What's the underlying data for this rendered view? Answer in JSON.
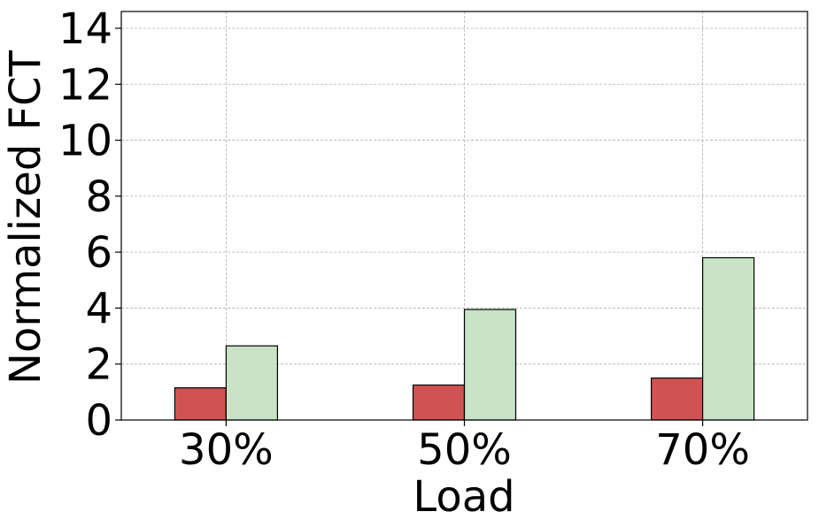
{
  "chart_data": {
    "type": "bar",
    "title": "",
    "xlabel": "Load",
    "ylabel": "Normalized FCT",
    "categories": [
      "30%",
      "50%",
      "70%"
    ],
    "series": [
      {
        "color": "#d05252",
        "values": [
          1.15,
          1.25,
          1.5
        ]
      },
      {
        "color": "#c8e3c5",
        "values": [
          2.65,
          3.95,
          5.8
        ]
      }
    ],
    "ylim": [
      0,
      14.6
    ],
    "yticks": [
      0,
      2,
      4,
      6,
      8,
      10,
      12,
      14
    ],
    "ytick_labels": [
      "0",
      "2",
      "4",
      "6",
      "8",
      "10",
      "12",
      "14"
    ],
    "grid": true,
    "legend": "none"
  }
}
